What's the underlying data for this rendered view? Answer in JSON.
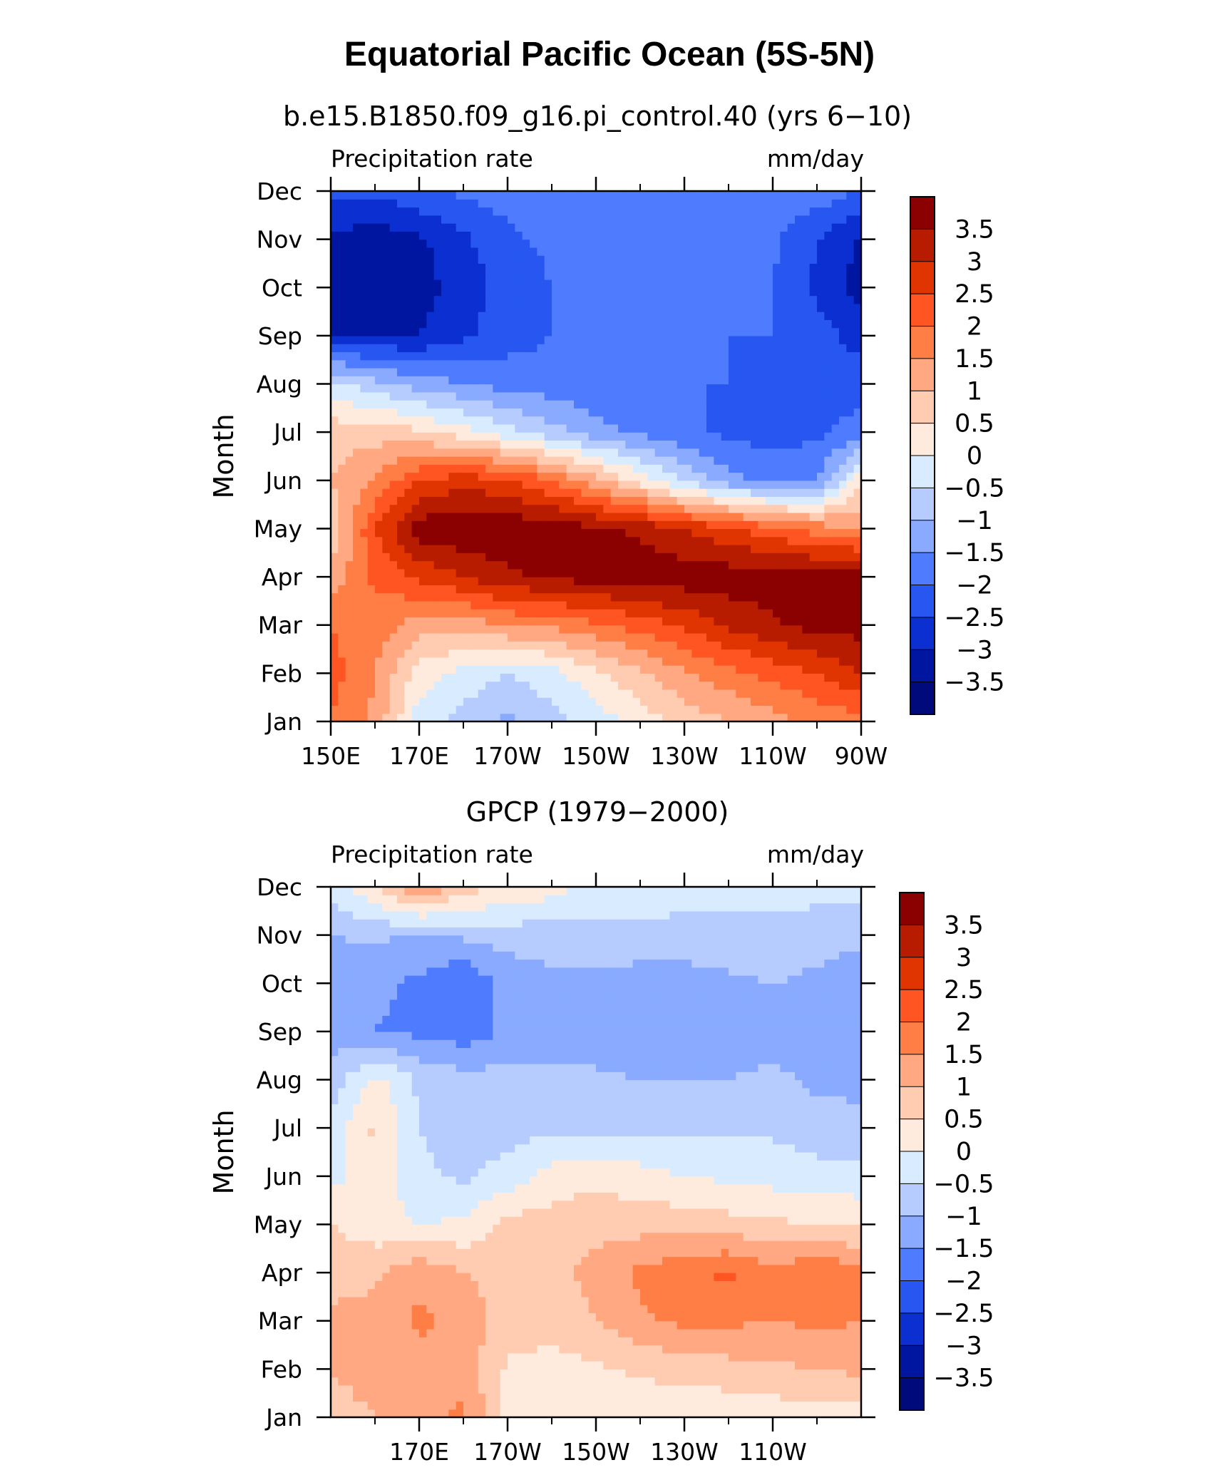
{
  "figure": {
    "title": "Equatorial Pacific Ocean (5S-5N)"
  },
  "colorbar": {
    "labels": [
      "3.5",
      "3",
      "2.5",
      "2",
      "1.5",
      "1",
      "0.5",
      "0",
      "-0.5",
      "-1",
      "-1.5",
      "-2",
      "-2.5",
      "-3",
      "-3.5"
    ],
    "levels": [
      3.5,
      3,
      2.5,
      2,
      1.5,
      1,
      0.5,
      0,
      -0.5,
      -1,
      -1.5,
      -2,
      -2.5,
      -3,
      -3.5
    ],
    "colors": [
      "#8B0000",
      "#B71C00",
      "#E03500",
      "#FF5522",
      "#FF7E45",
      "#FFA882",
      "#FFCCB2",
      "#FFEBDD",
      "#D9ECFF",
      "#B6CCFF",
      "#89AAFF",
      "#4F7CFF",
      "#2756F0",
      "#0B2FD0",
      "#0016A0",
      "#000A7A"
    ]
  },
  "chart_data": [
    {
      "type": "heatmap",
      "subtitle": "b.e15.B1850.f09_g16.pi_control.40 (yrs 6−10)",
      "left_label": "Precipitation rate",
      "right_label": "mm/day",
      "ylabel": "Month",
      "xlabel": "",
      "x_tick_labels": [
        "150E",
        "170E",
        "170W",
        "150W",
        "130W",
        "110W",
        "90W"
      ],
      "x_tick_values": [
        150,
        170,
        190,
        210,
        230,
        250,
        270
      ],
      "xlim": [
        150,
        270
      ],
      "y_tick_labels": [
        "Jan",
        "Feb",
        "Mar",
        "Apr",
        "May",
        "Jun",
        "Jul",
        "Aug",
        "Sep",
        "Oct",
        "Nov",
        "Dec"
      ],
      "ylim": [
        1,
        12
      ],
      "grid": false,
      "lon": [
        150,
        160,
        170,
        180,
        190,
        200,
        210,
        220,
        230,
        240,
        250,
        260,
        270
      ],
      "months": [
        "Jan",
        "Feb",
        "Mar",
        "Apr",
        "May",
        "Jun",
        "Jul",
        "Aug",
        "Sep",
        "Oct",
        "Nov",
        "Dec"
      ],
      "values": [
        [
          2.0,
          1.4,
          -0.3,
          -0.7,
          -1.1,
          -0.7,
          -0.3,
          0.2,
          0.7,
          1.0,
          1.3,
          1.6,
          1.8
        ],
        [
          2.2,
          1.5,
          0.3,
          -0.2,
          -0.5,
          -0.2,
          0.4,
          0.9,
          1.4,
          1.8,
          2.2,
          2.5,
          3.0
        ],
        [
          2.0,
          1.8,
          1.2,
          1.2,
          1.5,
          1.6,
          1.9,
          2.2,
          2.6,
          3.1,
          3.4,
          3.7,
          3.7
        ],
        [
          1.2,
          2.1,
          2.6,
          3.0,
          3.4,
          3.6,
          3.7,
          3.8,
          3.8,
          3.8,
          3.8,
          3.8,
          3.8
        ],
        [
          0.6,
          2.5,
          3.8,
          3.9,
          3.9,
          3.8,
          3.6,
          3.4,
          3.0,
          2.6,
          2.2,
          1.8,
          1.5
        ],
        [
          1.0,
          1.5,
          2.5,
          2.8,
          2.6,
          2.0,
          1.2,
          0.3,
          -0.6,
          -1.3,
          -1.7,
          -1.6,
          0.4
        ],
        [
          0.8,
          0.8,
          0.6,
          0.2,
          -0.3,
          -0.8,
          -1.3,
          -1.6,
          -1.9,
          -2.1,
          -2.2,
          -2.1,
          -1.8
        ],
        [
          -0.3,
          -0.8,
          -1.2,
          -1.5,
          -1.7,
          -1.8,
          -1.9,
          -2.0,
          -2.0,
          -2.0,
          -2.1,
          -2.2,
          -2.2
        ],
        [
          -3.0,
          -3.0,
          -3.0,
          -2.6,
          -2.2,
          -2.0,
          -2.0,
          -2.0,
          -2.0,
          -2.0,
          -2.0,
          -2.3,
          -2.7
        ],
        [
          -3.2,
          -3.3,
          -3.2,
          -2.8,
          -2.3,
          -2.0,
          -2.0,
          -1.9,
          -1.9,
          -2.0,
          -2.0,
          -2.6,
          -3.2
        ],
        [
          -3.1,
          -3.3,
          -3.1,
          -2.6,
          -2.1,
          -1.9,
          -1.8,
          -1.6,
          -1.5,
          -1.7,
          -1.9,
          -2.5,
          -3.1
        ],
        [
          -2.4,
          -2.4,
          -2.1,
          -1.9,
          -1.8,
          -1.7,
          -1.6,
          -1.5,
          -1.5,
          -1.6,
          -1.6,
          -1.7,
          -2.0
        ]
      ]
    },
    {
      "type": "heatmap",
      "subtitle": "GPCP (1979−2000)",
      "left_label": "Precipitation rate",
      "right_label": "mm/day",
      "ylabel": "Month",
      "xlabel": "",
      "x_tick_labels": [
        "170E",
        "170W",
        "150W",
        "130W",
        "110W"
      ],
      "x_tick_values": [
        170,
        190,
        210,
        230,
        250
      ],
      "xlim": [
        150,
        270
      ],
      "y_tick_labels": [
        "Jan",
        "Feb",
        "Mar",
        "Apr",
        "May",
        "Jun",
        "Jul",
        "Aug",
        "Sep",
        "Oct",
        "Nov",
        "Dec"
      ],
      "ylim": [
        1,
        12
      ],
      "grid": false,
      "lon": [
        150,
        160,
        170,
        180,
        190,
        200,
        210,
        220,
        230,
        240,
        250,
        260,
        270
      ],
      "months": [
        "Jan",
        "Feb",
        "Mar",
        "Apr",
        "May",
        "Jun",
        "Jul",
        "Aug",
        "Sep",
        "Oct",
        "Nov",
        "Dec"
      ],
      "values": [
        [
          0.8,
          1.0,
          1.3,
          1.6,
          0.3,
          0.1,
          0.1,
          0.1,
          0.1,
          0.1,
          0.2,
          0.2,
          0.3
        ],
        [
          1.0,
          1.2,
          1.3,
          1.3,
          0.4,
          0.3,
          0.4,
          0.6,
          0.7,
          0.8,
          0.9,
          1.0,
          1.1
        ],
        [
          1.1,
          1.2,
          1.6,
          1.3,
          0.8,
          0.7,
          1.0,
          1.4,
          1.6,
          1.6,
          1.5,
          1.6,
          1.5
        ],
        [
          0.8,
          0.9,
          1.4,
          1.0,
          0.8,
          0.8,
          1.2,
          1.6,
          1.9,
          2.1,
          1.6,
          2.0,
          1.7
        ],
        [
          0.5,
          0.2,
          0.0,
          0.1,
          0.7,
          0.7,
          0.8,
          0.8,
          0.8,
          0.7,
          0.6,
          0.5,
          0.4
        ],
        [
          -0.2,
          0.4,
          -0.4,
          -0.6,
          -0.3,
          0.2,
          0.4,
          0.2,
          0.0,
          -0.1,
          -0.2,
          -0.3,
          -0.3
        ],
        [
          -0.3,
          0.6,
          -0.5,
          -0.7,
          -0.7,
          -0.6,
          -0.6,
          -0.6,
          -0.6,
          -0.6,
          -0.6,
          -0.8,
          -0.9
        ],
        [
          -0.8,
          0.2,
          -0.6,
          -0.8,
          -0.8,
          -0.9,
          -0.9,
          -1.0,
          -1.0,
          -1.0,
          -0.9,
          -1.1,
          -1.1
        ],
        [
          -1.2,
          -1.5,
          -1.6,
          -1.8,
          -1.4,
          -1.2,
          -1.3,
          -1.4,
          -1.3,
          -1.2,
          -1.2,
          -1.1,
          -1.2
        ],
        [
          -1.3,
          -1.4,
          -1.6,
          -2.0,
          -1.3,
          -1.1,
          -1.2,
          -1.3,
          -1.3,
          -1.1,
          -1.0,
          -1.1,
          -1.3
        ],
        [
          -1.0,
          -0.9,
          -1.1,
          -0.9,
          -0.8,
          -0.8,
          -0.6,
          -0.6,
          -0.6,
          -0.7,
          -0.7,
          -0.8,
          -0.9
        ],
        [
          -0.3,
          0.5,
          1.6,
          0.7,
          0.5,
          0.2,
          -0.3,
          -0.3,
          -0.4,
          -0.3,
          -0.3,
          -0.3,
          -0.3
        ]
      ]
    }
  ]
}
